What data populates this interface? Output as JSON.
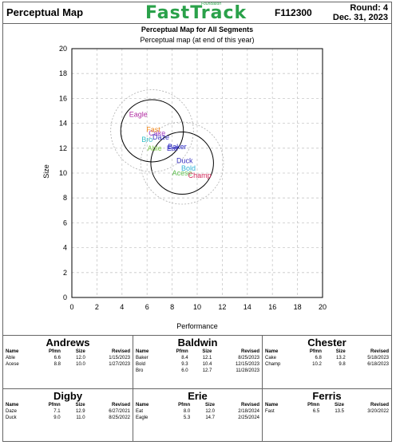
{
  "header": {
    "title": "Perceptual Map",
    "brand_sup": "Foundation",
    "brand": "FastTrack",
    "id": "F112300",
    "round": "Round: 4",
    "date": "Dec. 31, 2023"
  },
  "chart_data": {
    "type": "scatter",
    "title": "Perceptual Map for All Segments",
    "subtitle": "Perceptual map (at end of this year)",
    "xlabel": "Performance",
    "ylabel": "Size",
    "xlim": [
      0,
      20
    ],
    "ylim": [
      0,
      20
    ],
    "xticks": [
      0,
      2,
      4,
      6,
      8,
      10,
      12,
      14,
      16,
      18,
      20
    ],
    "yticks": [
      0,
      2,
      4,
      6,
      8,
      10,
      12,
      14,
      16,
      18,
      20
    ],
    "grid": true,
    "circles": [
      {
        "cx": 6.4,
        "cy": 13.4,
        "r": 2.5,
        "style": "solid"
      },
      {
        "cx": 8.8,
        "cy": 10.8,
        "r": 2.5,
        "style": "solid"
      },
      {
        "cx": 6.4,
        "cy": 13.4,
        "r": 3.3,
        "style": "dotted"
      },
      {
        "cx": 8.8,
        "cy": 10.8,
        "r": 3.3,
        "style": "dotted"
      }
    ],
    "points": [
      {
        "name": "Able",
        "x": 6.6,
        "y": 12.0,
        "color": "#7fc94b"
      },
      {
        "name": "Acese",
        "x": 8.8,
        "y": 10.0,
        "color": "#5fbf4f"
      },
      {
        "name": "Baker",
        "x": 8.4,
        "y": 12.1,
        "color": "#1f1fbf"
      },
      {
        "name": "Bold",
        "x": 9.3,
        "y": 10.4,
        "color": "#2fb3d6"
      },
      {
        "name": "Bro",
        "x": 6.0,
        "y": 12.7,
        "color": "#35c0c8"
      },
      {
        "name": "Cake",
        "x": 6.8,
        "y": 13.2,
        "color": "#a03cc0"
      },
      {
        "name": "Champ",
        "x": 10.2,
        "y": 9.8,
        "color": "#d2285a"
      },
      {
        "name": "Daze",
        "x": 7.1,
        "y": 12.9,
        "color": "#3b34c0"
      },
      {
        "name": "Duck",
        "x": 9.0,
        "y": 11.0,
        "color": "#3b34c0"
      },
      {
        "name": "Eat",
        "x": 8.0,
        "y": 12.0,
        "color": "#3b34c0"
      },
      {
        "name": "Eagle",
        "x": 5.3,
        "y": 14.7,
        "color": "#b02aa0"
      },
      {
        "name": "Fast",
        "x": 6.5,
        "y": 13.5,
        "color": "#f28a1e"
      }
    ]
  },
  "tables": [
    {
      "segment": "Andrews",
      "headers": [
        "Name",
        "Pfmn",
        "Size",
        "Revised"
      ],
      "rows": [
        [
          "Able",
          "6.6",
          "12.0",
          "1/15/2023"
        ],
        [
          "Acese",
          "8.8",
          "10.0",
          "1/27/2023"
        ]
      ]
    },
    {
      "segment": "Baldwin",
      "headers": [
        "Name",
        "Pfmn",
        "Size",
        "Revised"
      ],
      "rows": [
        [
          "Baker",
          "8.4",
          "12.1",
          "8/25/2023"
        ],
        [
          "Bold",
          "9.3",
          "10.4",
          "12/15/2023"
        ],
        [
          "Bro",
          "6.0",
          "12.7",
          "11/28/2023"
        ]
      ]
    },
    {
      "segment": "Chester",
      "headers": [
        "Name",
        "Pfmn",
        "Size",
        "Revised"
      ],
      "rows": [
        [
          "Cake",
          "6.8",
          "13.2",
          "5/18/2023"
        ],
        [
          "Champ",
          "10.2",
          "9.8",
          "6/18/2023"
        ]
      ]
    },
    {
      "segment": "Digby",
      "headers": [
        "Name",
        "Pfmn",
        "Size",
        "Revised"
      ],
      "rows": [
        [
          "Daze",
          "7.1",
          "12.9",
          "6/27/2021"
        ],
        [
          "Duck",
          "9.0",
          "11.0",
          "8/25/2022"
        ]
      ]
    },
    {
      "segment": "Erie",
      "headers": [
        "Name",
        "Pfmn",
        "Size",
        "Revised"
      ],
      "rows": [
        [
          "Eat",
          "8.0",
          "12.0",
          "2/18/2024"
        ],
        [
          "Eagle",
          "5.3",
          "14.7",
          "2/25/2024"
        ]
      ]
    },
    {
      "segment": "Ferris",
      "headers": [
        "Name",
        "Pfmn",
        "Size",
        "Revised"
      ],
      "rows": [
        [
          "Fast",
          "6.5",
          "13.5",
          "3/20/2022"
        ]
      ]
    }
  ]
}
